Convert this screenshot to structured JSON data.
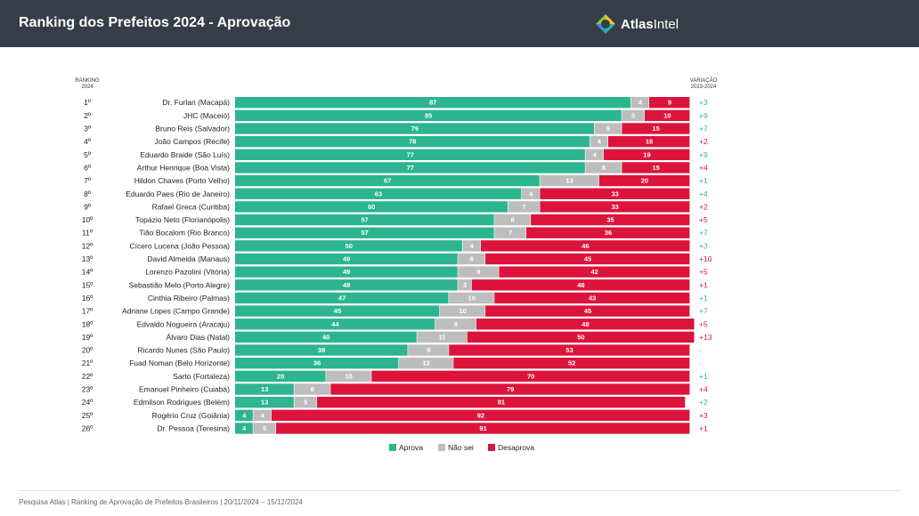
{
  "header": {
    "title": "Ranking dos Prefeitos 2024 - Aprovação",
    "logo_text_bold": "Atlas",
    "logo_text": "Intel"
  },
  "column_headers": {
    "ranking": "RANKING 2024",
    "variation": "VARIAÇÃO 2023-2024"
  },
  "colors": {
    "aprova": "#2cb58f",
    "nao_sei": "#bdbdbd",
    "desaprova": "#dc143c",
    "positive": "#2cb58f",
    "negative": "#dc143c",
    "neutral": "#999999"
  },
  "chart_data": {
    "type": "bar",
    "stacked": true,
    "orientation": "horizontal",
    "categories": [
      "Dr. Furlan (Macapá)",
      "JHC (Maceió)",
      "Bruno Reis (Salvador)",
      "João Campos (Recife)",
      "Eduardo Braide (São Luís)",
      "Arthur Henrique (Boa Vista)",
      "Hildon Chaves (Porto Velho)",
      "Eduardo Paes (Rio de Janeiro)",
      "Rafael Greca (Curitiba)",
      "Topázio Neto (Florianópolis)",
      "Tião Bocalom (Rio Branco)",
      "Cícero Lucena (João Pessoa)",
      "David Almeida (Manaus)",
      "Lorenzo Pazolini (Vitória)",
      "Sebastião Melo (Porto Alegre)",
      "Cinthia Ribeiro (Palmas)",
      "Adriane Lopes (Campo Grande)",
      "Edvaldo Nogueira (Aracaju)",
      "Álvaro Dias (Natal)",
      "Ricardo Nunes (São Paulo)",
      "Fuad Noman (Belo Horizonte)",
      "Sarto (Fortaleza)",
      "Emanuel Pinheiro (Cuiabá)",
      "Edmilson Rodrigues (Belém)",
      "Rogério Cruz (Goiânia)",
      "Dr. Pessoa (Teresina)"
    ],
    "ranks": [
      "1º",
      "2º",
      "3º",
      "4º",
      "5º",
      "6º",
      "7º",
      "8º",
      "9º",
      "10º",
      "11º",
      "12º",
      "13º",
      "14º",
      "15º",
      "16º",
      "17º",
      "18º",
      "19º",
      "20º",
      "21º",
      "22º",
      "23º",
      "24º",
      "25º",
      "26º"
    ],
    "series": [
      {
        "name": "Aprova",
        "values": [
          87,
          85,
          79,
          78,
          77,
          77,
          67,
          63,
          60,
          57,
          57,
          50,
          49,
          49,
          49,
          47,
          45,
          44,
          40,
          38,
          36,
          20,
          13,
          13,
          4,
          4
        ]
      },
      {
        "name": "Não sei",
        "values": [
          4,
          5,
          6,
          4,
          4,
          8,
          13,
          4,
          7,
          8,
          7,
          4,
          6,
          9,
          3,
          10,
          10,
          9,
          11,
          9,
          12,
          10,
          8,
          5,
          4,
          5
        ]
      },
      {
        "name": "Desaprova",
        "values": [
          9,
          10,
          15,
          18,
          19,
          15,
          20,
          33,
          33,
          35,
          36,
          46,
          45,
          42,
          48,
          43,
          45,
          48,
          50,
          53,
          52,
          70,
          79,
          81,
          92,
          91
        ]
      }
    ],
    "variation": [
      "+3",
      "+9",
      "+7",
      "+2",
      "+9",
      "+4",
      "+1",
      "+4",
      "+2",
      "+5",
      "+7",
      "+3",
      "+10",
      "+5",
      "+1",
      "+1",
      "+7",
      "+5",
      "+13",
      "-",
      "-",
      "+1",
      "+4",
      "+2",
      "+3",
      "+1"
    ],
    "variation_sign": [
      "pos",
      "pos",
      "pos",
      "neg",
      "pos",
      "neg",
      "pos",
      "pos",
      "neg",
      "neg",
      "pos",
      "pos",
      "neg",
      "neg",
      "neg",
      "pos",
      "pos",
      "neg",
      "neg",
      "none",
      "none",
      "pos",
      "neg",
      "pos",
      "neg",
      "neg"
    ],
    "xlim": [
      0,
      100
    ],
    "legend_position": "bottom"
  },
  "footer": {
    "text": "Pesquisa Atlas  |  Ranking de Aprovação de Prefeitos Brasileiros  |  20/11/2024 – 15/12/2024"
  }
}
